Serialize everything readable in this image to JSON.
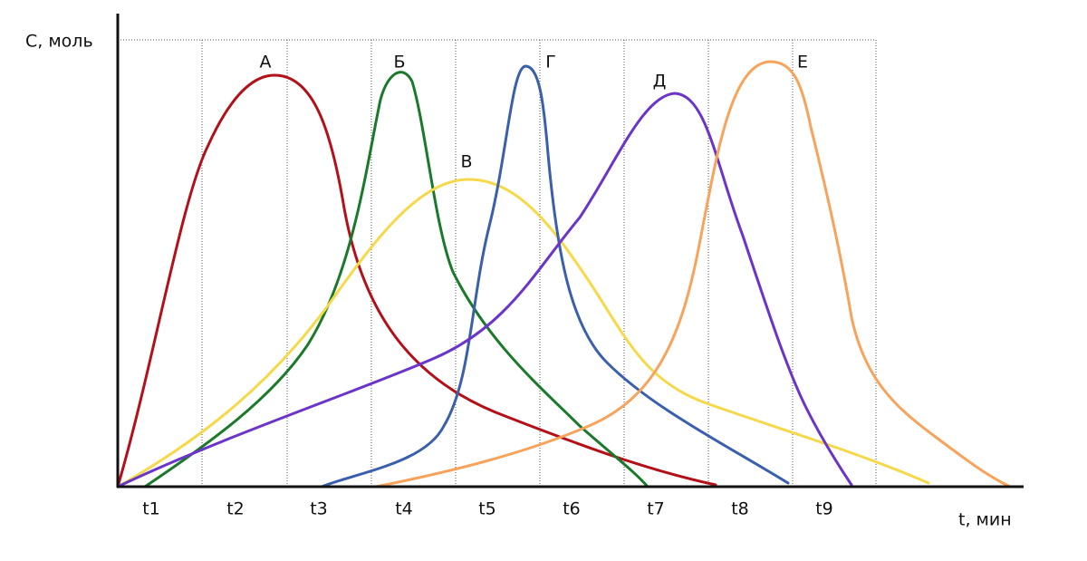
{
  "axes": {
    "y_label": "С, моль",
    "x_label": "t, мин"
  },
  "intervals": [
    "t1",
    "t2",
    "t3",
    "t4",
    "t5",
    "t6",
    "t7",
    "t8",
    "t9"
  ],
  "curves": [
    {
      "label": "А"
    },
    {
      "label": "Б"
    },
    {
      "label": "В"
    },
    {
      "label": "Г"
    },
    {
      "label": "Д"
    },
    {
      "label": "Е"
    }
  ]
}
